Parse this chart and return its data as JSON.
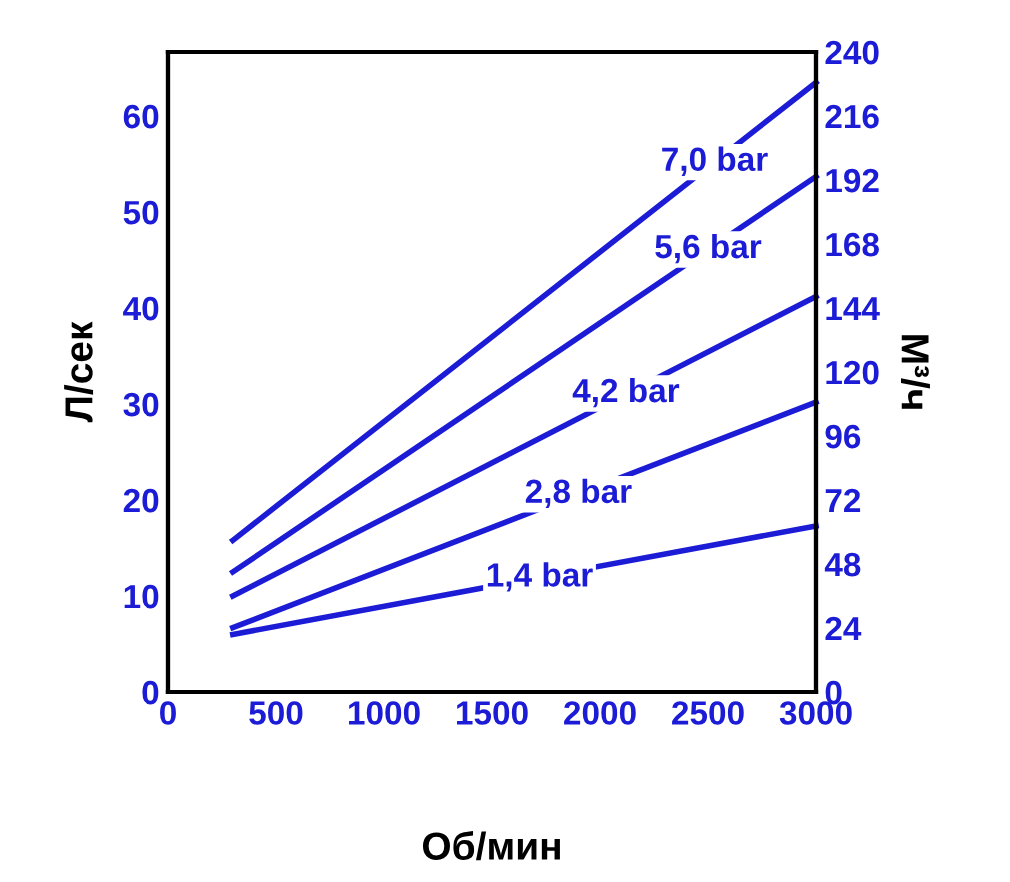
{
  "chart_data": {
    "type": "line",
    "xlabel": "Об/мин",
    "ylabel": "Л/сек",
    "y2label": "М³/ч",
    "xlim": [
      0,
      3000
    ],
    "xticks": [
      0,
      500,
      1000,
      1500,
      2000,
      2500,
      3000
    ],
    "ylim": [
      0,
      66.67
    ],
    "yticks": [
      0,
      10,
      20,
      30,
      40,
      50,
      60
    ],
    "y2lim": [
      0,
      240
    ],
    "y2ticks": [
      0,
      24,
      48,
      72,
      96,
      120,
      144,
      168,
      192,
      216,
      240
    ],
    "grid": false,
    "legend": false,
    "marker": "none",
    "line_style": "solid",
    "x": [
      300,
      3000
    ],
    "series": [
      {
        "color": "#1c1cd6",
        "values": [
          15.8,
          63.5
        ]
      },
      {
        "color": "#1c1cd6",
        "values": [
          12.5,
          53.7
        ]
      },
      {
        "color": "#1c1cd6",
        "values": [
          10,
          41.2
        ]
      },
      {
        "color": "#1c1cd6",
        "values": [
          6.7,
          30.2
        ]
      },
      {
        "color": "#1c1cd6",
        "values": [
          6,
          17.3
        ]
      }
    ],
    "annotations": [
      {
        "text": "7,0 bar",
        "x": 2530,
        "y": 55.2
      },
      {
        "text": "5,6 bar",
        "x": 2500,
        "y": 46.1
      },
      {
        "text": "4,2 bar",
        "x": 2120,
        "y": 31.1
      },
      {
        "text": "2,8 bar",
        "x": 1900,
        "y": 20.6
      },
      {
        "text": "1,4 bar",
        "x": 1720,
        "y": 11.9
      }
    ]
  }
}
